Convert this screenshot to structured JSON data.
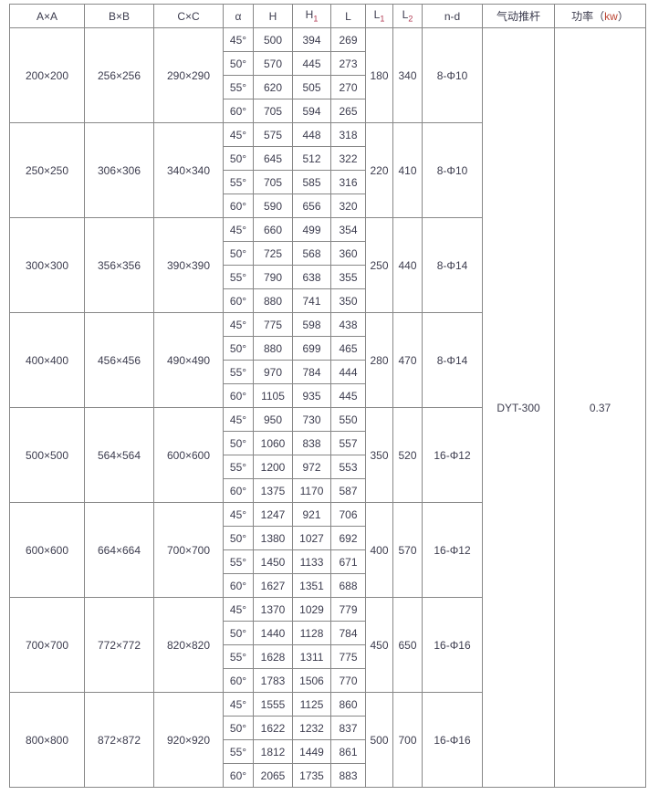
{
  "colors": {
    "border": "#878787",
    "text": "#3c3c4e",
    "subscript": "#b23a52",
    "unit_accent": "#bb4433",
    "background": "#ffffff"
  },
  "chart_data": {
    "type": "table",
    "headers": [
      {
        "key": "axa",
        "text": "A×A"
      },
      {
        "key": "bxb",
        "text": "B×B"
      },
      {
        "key": "cxc",
        "text": "C×C"
      },
      {
        "key": "alpha",
        "text": "α"
      },
      {
        "key": "h",
        "text": "H"
      },
      {
        "key": "h1",
        "text": "H",
        "sub": "1"
      },
      {
        "key": "l",
        "text": "L"
      },
      {
        "key": "l1",
        "text": "L",
        "sub": "1"
      },
      {
        "key": "l2",
        "text": "L",
        "sub": "2"
      },
      {
        "key": "nd",
        "text": "n-d"
      },
      {
        "key": "actuator",
        "text": "气动推杆"
      },
      {
        "key": "power",
        "text": "功率（",
        "accent": "kw",
        "after": "）"
      }
    ],
    "actuator": "DYT-300",
    "power": "0.37",
    "groups": [
      {
        "axa": "200×200",
        "bxb": "256×256",
        "cxc": "290×290",
        "l1": "180",
        "l2": "340",
        "nd": "8-Φ10",
        "rows": [
          {
            "alpha": "45°",
            "h": "500",
            "h1": "394",
            "l": "269"
          },
          {
            "alpha": "50°",
            "h": "570",
            "h1": "445",
            "l": "273"
          },
          {
            "alpha": "55°",
            "h": "620",
            "h1": "505",
            "l": "270"
          },
          {
            "alpha": "60°",
            "h": "705",
            "h1": "594",
            "l": "265"
          }
        ]
      },
      {
        "axa": "250×250",
        "bxb": "306×306",
        "cxc": "340×340",
        "l1": "220",
        "l2": "410",
        "nd": "8-Φ10",
        "rows": [
          {
            "alpha": "45°",
            "h": "575",
            "h1": "448",
            "l": "318"
          },
          {
            "alpha": "50°",
            "h": "645",
            "h1": "512",
            "l": "322"
          },
          {
            "alpha": "55°",
            "h": "705",
            "h1": "585",
            "l": "316"
          },
          {
            "alpha": "60°",
            "h": "590",
            "h1": "656",
            "l": "320"
          }
        ]
      },
      {
        "axa": "300×300",
        "bxb": "356×356",
        "cxc": "390×390",
        "l1": "250",
        "l2": "440",
        "nd": "8-Φ14",
        "rows": [
          {
            "alpha": "45°",
            "h": "660",
            "h1": "499",
            "l": "354"
          },
          {
            "alpha": "50°",
            "h": "725",
            "h1": "568",
            "l": "360"
          },
          {
            "alpha": "55°",
            "h": "790",
            "h1": "638",
            "l": "355"
          },
          {
            "alpha": "60°",
            "h": "880",
            "h1": "741",
            "l": "350"
          }
        ]
      },
      {
        "axa": "400×400",
        "bxb": "456×456",
        "cxc": "490×490",
        "l1": "280",
        "l2": "470",
        "nd": "8-Φ14",
        "rows": [
          {
            "alpha": "45°",
            "h": "775",
            "h1": "598",
            "l": "438"
          },
          {
            "alpha": "50°",
            "h": "880",
            "h1": "699",
            "l": "465"
          },
          {
            "alpha": "55°",
            "h": "970",
            "h1": "784",
            "l": "444"
          },
          {
            "alpha": "60°",
            "h": "1105",
            "h1": "935",
            "l": "445"
          }
        ]
      },
      {
        "axa": "500×500",
        "bxb": "564×564",
        "cxc": "600×600",
        "l1": "350",
        "l2": "520",
        "nd": "16-Φ12",
        "rows": [
          {
            "alpha": "45°",
            "h": "950",
            "h1": "730",
            "l": "550"
          },
          {
            "alpha": "50°",
            "h": "1060",
            "h1": "838",
            "l": "557"
          },
          {
            "alpha": "55°",
            "h": "1200",
            "h1": "972",
            "l": "553"
          },
          {
            "alpha": "60°",
            "h": "1375",
            "h1": "1170",
            "l": "587"
          }
        ]
      },
      {
        "axa": "600×600",
        "bxb": "664×664",
        "cxc": "700×700",
        "l1": "400",
        "l2": "570",
        "nd": "16-Φ12",
        "rows": [
          {
            "alpha": "45°",
            "h": "1247",
            "h1": "921",
            "l": "706"
          },
          {
            "alpha": "50°",
            "h": "1380",
            "h1": "1027",
            "l": "692"
          },
          {
            "alpha": "55°",
            "h": "1450",
            "h1": "1133",
            "l": "671"
          },
          {
            "alpha": "60°",
            "h": "1627",
            "h1": "1351",
            "l": "688"
          }
        ]
      },
      {
        "axa": "700×700",
        "bxb": "772×772",
        "cxc": "820×820",
        "l1": "450",
        "l2": "650",
        "nd": "16-Φ16",
        "rows": [
          {
            "alpha": "45°",
            "h": "1370",
            "h1": "1029",
            "l": "779"
          },
          {
            "alpha": "50°",
            "h": "1440",
            "h1": "1128",
            "l": "784"
          },
          {
            "alpha": "55°",
            "h": "1628",
            "h1": "1311",
            "l": "775"
          },
          {
            "alpha": "60°",
            "h": "1783",
            "h1": "1506",
            "l": "770"
          }
        ]
      },
      {
        "axa": "800×800",
        "bxb": "872×872",
        "cxc": "920×920",
        "l1": "500",
        "l2": "700",
        "nd": "16-Φ16",
        "rows": [
          {
            "alpha": "45°",
            "h": "1555",
            "h1": "1125",
            "l": "860"
          },
          {
            "alpha": "50°",
            "h": "1622",
            "h1": "1232",
            "l": "837"
          },
          {
            "alpha": "55°",
            "h": "1812",
            "h1": "1449",
            "l": "861"
          },
          {
            "alpha": "60°",
            "h": "2065",
            "h1": "1735",
            "l": "883"
          }
        ]
      }
    ]
  }
}
